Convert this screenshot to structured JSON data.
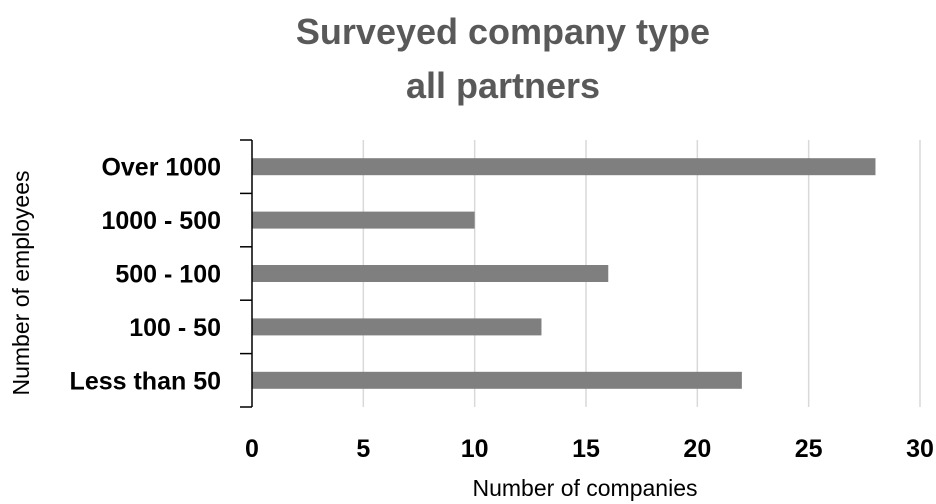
{
  "chart_data": {
    "type": "bar",
    "orientation": "horizontal",
    "title": [
      "Surveyed company type",
      "all partners"
    ],
    "xlabel": "Number of companies",
    "ylabel": "Number of employees",
    "categories": [
      "Over 1000",
      "1000 - 500",
      "500 - 100",
      "100 - 50",
      "Less than 50"
    ],
    "values": [
      28,
      10,
      16,
      13,
      22
    ],
    "xlim": [
      0,
      30
    ],
    "xticks": [
      "0",
      "5",
      "10",
      "15",
      "20",
      "25",
      "30"
    ],
    "grid": "vertical",
    "bar_color": "#7f7f7f",
    "grid_color": "#d9d9d9",
    "axis_color": "#000000",
    "title_color": "#595959"
  }
}
